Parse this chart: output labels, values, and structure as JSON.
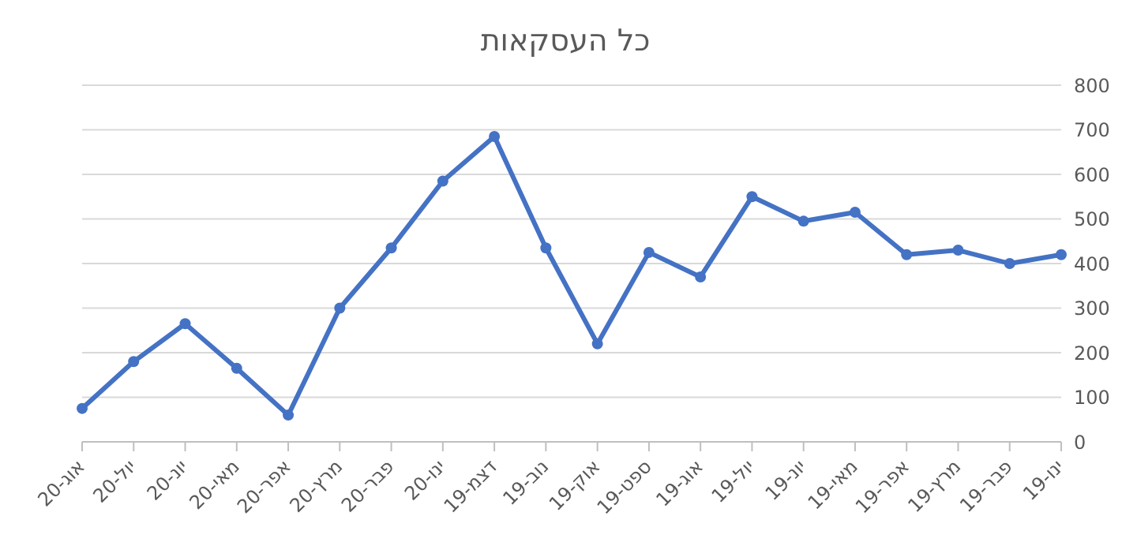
{
  "chart_data": {
    "type": "line",
    "title": "כל העסקאות",
    "categories": [
      "אוג-20",
      "יול-20",
      "יונ-20",
      "מאי-20",
      "אפר-20",
      "מרץ-20",
      "פבר-20",
      "ינו-20",
      "דצמ-19",
      "נוב-19",
      "אוק-19",
      "ספט-19",
      "אוג-19",
      "יול-19",
      "יונ-19",
      "מאי-19",
      "אפר-19",
      "מרץ-19",
      "פבר-19",
      "ינו-19"
    ],
    "series": [
      {
        "color": "#4472c4",
        "values": [
          75,
          180,
          265,
          165,
          60,
          300,
          435,
          585,
          685,
          435,
          220,
          425,
          370,
          550,
          495,
          515,
          420,
          430,
          400,
          420
        ]
      }
    ],
    "ylim": [
      0,
      800
    ],
    "yticks": [
      0,
      100,
      200,
      300,
      400,
      500,
      600,
      700,
      800
    ],
    "grid": "y",
    "marker": "circle",
    "line_style": "solid",
    "legend": false
  }
}
